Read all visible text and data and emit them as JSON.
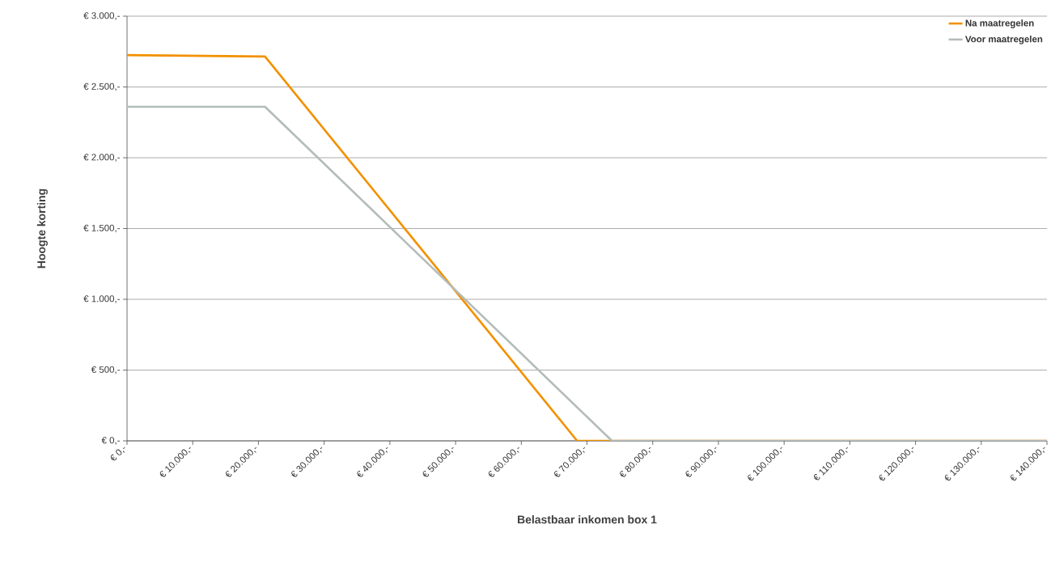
{
  "chart_data": {
    "type": "line",
    "xlabel": "Belastbaar inkomen box 1",
    "ylabel": "Hoogte korting",
    "series": [
      {
        "name": "Na maatregelen",
        "color": "#f29100",
        "x": [
          0,
          21000,
          68500,
          140000
        ],
        "values": [
          2725,
          2715,
          0,
          0
        ]
      },
      {
        "name": "Voor maatregelen",
        "color": "#b3bcb8",
        "x": [
          0,
          21000,
          73800,
          140000
        ],
        "values": [
          2360,
          2360,
          0,
          0
        ]
      }
    ],
    "xlim": [
      0,
      140000
    ],
    "xticks": [
      {
        "value": 0,
        "label": "€ 0,-"
      },
      {
        "value": 10000,
        "label": "€ 10.000,-"
      },
      {
        "value": 20000,
        "label": "€ 20.000,-"
      },
      {
        "value": 30000,
        "label": "€ 30.000,-"
      },
      {
        "value": 40000,
        "label": "€ 40.000,-"
      },
      {
        "value": 50000,
        "label": "€ 50.000,-"
      },
      {
        "value": 60000,
        "label": "€ 60.000,-"
      },
      {
        "value": 70000,
        "label": "€ 70.000,-"
      },
      {
        "value": 80000,
        "label": "€ 80.000,-"
      },
      {
        "value": 90000,
        "label": "€ 90.000,-"
      },
      {
        "value": 100000,
        "label": "€ 100.000,-"
      },
      {
        "value": 110000,
        "label": "€ 110.000,-"
      },
      {
        "value": 120000,
        "label": "€ 120.000,-"
      },
      {
        "value": 130000,
        "label": "€ 130.000,-"
      },
      {
        "value": 140000,
        "label": "€ 140.000,-"
      }
    ],
    "ylim": [
      0,
      3000
    ],
    "yticks": [
      {
        "value": 0,
        "label": "€ 0,-"
      },
      {
        "value": 500,
        "label": "€ 500,-"
      },
      {
        "value": 1000,
        "label": "€ 1.000,-"
      },
      {
        "value": 1500,
        "label": "€ 1.500,-"
      },
      {
        "value": 2000,
        "label": "€ 2.000,-"
      },
      {
        "value": 2500,
        "label": "€ 2.500,-"
      },
      {
        "value": 3000,
        "label": "€ 3.000,-"
      }
    ],
    "grid": "y",
    "legend": "top right",
    "marker": "none",
    "line_style": "solid"
  }
}
